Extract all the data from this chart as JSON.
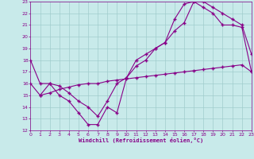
{
  "xlabel": "Windchill (Refroidissement éolien,°C)",
  "xlim": [
    0,
    23
  ],
  "ylim": [
    12,
    23
  ],
  "xticks": [
    0,
    1,
    2,
    3,
    4,
    5,
    6,
    7,
    8,
    9,
    10,
    11,
    12,
    13,
    14,
    15,
    16,
    17,
    18,
    19,
    20,
    21,
    22,
    23
  ],
  "yticks": [
    12,
    13,
    14,
    15,
    16,
    17,
    18,
    19,
    20,
    21,
    22,
    23
  ],
  "bg_color": "#c8eaea",
  "line_color": "#880088",
  "grid_color": "#a0cccc",
  "line1_x": [
    0,
    1,
    2,
    3,
    4,
    5,
    6,
    7,
    8,
    9,
    10,
    11,
    12,
    13,
    14,
    15,
    16,
    17,
    18,
    19,
    20,
    21,
    22,
    23
  ],
  "line1_y": [
    18,
    16,
    16,
    15,
    14.5,
    13.5,
    12.5,
    12.5,
    14,
    13.5,
    16.5,
    17.5,
    18,
    19,
    19.5,
    20.5,
    21.2,
    23,
    23,
    22.5,
    22,
    21.5,
    21,
    18.5
  ],
  "line2_x": [
    1,
    2,
    3,
    4,
    5,
    6,
    7,
    8,
    9,
    10,
    11,
    12,
    13,
    14,
    15,
    16,
    17,
    18,
    19,
    20,
    21,
    22,
    23
  ],
  "line2_y": [
    15,
    16,
    15.8,
    15.2,
    14.5,
    14,
    13.2,
    14.5,
    16,
    16.5,
    18,
    18.5,
    19,
    19.5,
    21.5,
    22.8,
    23,
    22.5,
    22,
    21,
    21,
    20.8,
    17
  ],
  "line3_x": [
    0,
    1,
    2,
    3,
    4,
    5,
    6,
    7,
    8,
    9,
    10,
    11,
    12,
    13,
    14,
    15,
    16,
    17,
    18,
    19,
    20,
    21,
    22,
    23
  ],
  "line3_y": [
    16,
    15,
    15.2,
    15.5,
    15.7,
    15.9,
    16.0,
    16.0,
    16.2,
    16.3,
    16.4,
    16.5,
    16.6,
    16.7,
    16.8,
    16.9,
    17.0,
    17.1,
    17.2,
    17.3,
    17.4,
    17.5,
    17.6,
    17
  ]
}
